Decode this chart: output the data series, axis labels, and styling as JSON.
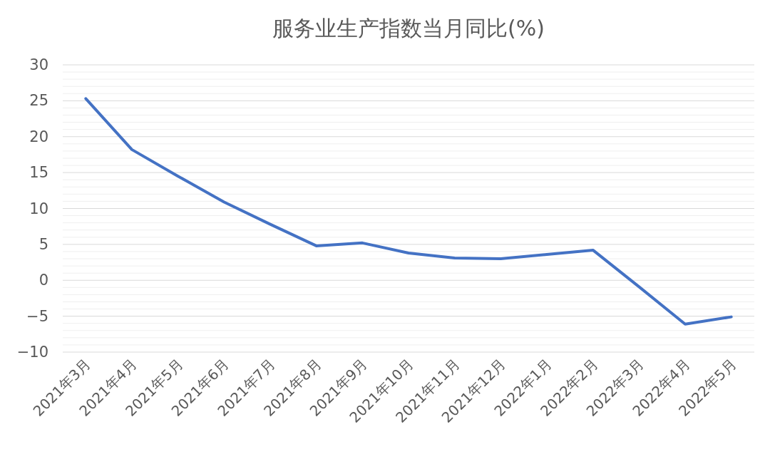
{
  "chart_data": {
    "type": "line",
    "title": "服务业生产指数当月同比(%)",
    "categories": [
      "2021年3月",
      "2021年4月",
      "2021年5月",
      "2021年6月",
      "2021年7月",
      "2021年8月",
      "2021年9月",
      "2021年10月",
      "2021年11月",
      "2021年12月",
      "2022年1月",
      "2022年2月",
      "2022年3月",
      "2022年4月",
      "2022年5月"
    ],
    "series": [
      {
        "color": "#4472c4",
        "values": [
          25.3,
          18.2,
          14.5,
          10.9,
          7.8,
          4.8,
          5.2,
          3.8,
          3.1,
          3.0,
          3.6,
          4.2,
          -0.9,
          -6.1,
          -5.1
        ]
      }
    ],
    "ylim": [
      -10,
      30
    ],
    "yticks": [
      {
        "value": -10,
        "label": "−10"
      },
      {
        "value": -5,
        "label": "−5"
      },
      0,
      5,
      10,
      15,
      20,
      25,
      30
    ],
    "grid": "y",
    "marker": "none",
    "line_style": "solid"
  }
}
